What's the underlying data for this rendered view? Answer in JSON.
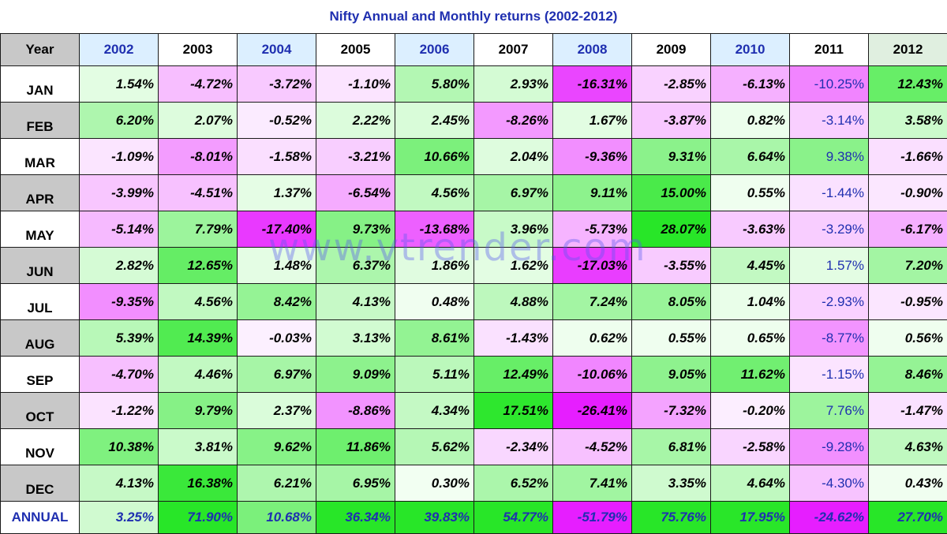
{
  "title": "Nifty Annual and Monthly returns (2002-2012)",
  "year_header": "Year",
  "years": [
    "2002",
    "2003",
    "2004",
    "2005",
    "2006",
    "2007",
    "2008",
    "2009",
    "2010",
    "2011",
    "2012"
  ],
  "watermark": "www.vtrender.com",
  "rows": [
    {
      "month": "JAN",
      "values": [
        "1.54%",
        "-4.72%",
        "-3.72%",
        "-1.10%",
        "5.80%",
        "2.93%",
        "-16.31%",
        "-2.85%",
        "-6.13%",
        "-10.25%",
        "12.43%"
      ]
    },
    {
      "month": "FEB",
      "values": [
        "6.20%",
        "2.07%",
        "-0.52%",
        "2.22%",
        "2.45%",
        "-8.26%",
        "1.67%",
        "-3.87%",
        "0.82%",
        "-3.14%",
        "3.58%"
      ]
    },
    {
      "month": "MAR",
      "values": [
        "-1.09%",
        "-8.01%",
        "-1.58%",
        "-3.21%",
        "10.66%",
        "2.04%",
        "-9.36%",
        "9.31%",
        "6.64%",
        "9.38%",
        "-1.66%"
      ]
    },
    {
      "month": "APR",
      "values": [
        "-3.99%",
        "-4.51%",
        "1.37%",
        "-6.54%",
        "4.56%",
        "6.97%",
        "9.11%",
        "15.00%",
        "0.55%",
        "-1.44%",
        "-0.90%"
      ]
    },
    {
      "month": "MAY",
      "values": [
        "-5.14%",
        "7.79%",
        "-17.40%",
        "9.73%",
        "-13.68%",
        "3.96%",
        "-5.73%",
        "28.07%",
        "-3.63%",
        "-3.29%",
        "-6.17%"
      ]
    },
    {
      "month": "JUN",
      "values": [
        "2.82%",
        "12.65%",
        "1.48%",
        "6.37%",
        "1.86%",
        "1.62%",
        "-17.03%",
        "-3.55%",
        "4.45%",
        "1.57%",
        "7.20%"
      ]
    },
    {
      "month": "JUL",
      "values": [
        "-9.35%",
        "4.56%",
        "8.42%",
        "4.13%",
        "0.48%",
        "4.88%",
        "7.24%",
        "8.05%",
        "1.04%",
        "-2.93%",
        "-0.95%"
      ]
    },
    {
      "month": "AUG",
      "values": [
        "5.39%",
        "14.39%",
        "-0.03%",
        "3.13%",
        "8.61%",
        "-1.43%",
        "0.62%",
        "0.55%",
        "0.65%",
        "-8.77%",
        "0.56%"
      ]
    },
    {
      "month": "SEP",
      "values": [
        "-4.70%",
        "4.46%",
        "6.97%",
        "9.09%",
        "5.11%",
        "12.49%",
        "-10.06%",
        "9.05%",
        "11.62%",
        "-1.15%",
        "8.46%"
      ]
    },
    {
      "month": "OCT",
      "values": [
        "-1.22%",
        "9.79%",
        "2.37%",
        "-8.86%",
        "4.34%",
        "17.51%",
        "-26.41%",
        "-7.32%",
        "-0.20%",
        "7.76%",
        "-1.47%"
      ]
    },
    {
      "month": "NOV",
      "values": [
        "10.38%",
        "3.81%",
        "9.62%",
        "11.86%",
        "5.62%",
        "-2.34%",
        "-4.52%",
        "6.81%",
        "-2.58%",
        "-9.28%",
        "4.63%"
      ]
    },
    {
      "month": "DEC",
      "values": [
        "4.13%",
        "16.38%",
        "6.21%",
        "6.95%",
        "0.30%",
        "6.52%",
        "7.41%",
        "3.35%",
        "4.64%",
        "-4.30%",
        "0.43%"
      ]
    }
  ],
  "annual": {
    "label": "ANNUAL",
    "values": [
      "3.25%",
      "71.90%",
      "10.68%",
      "36.34%",
      "39.83%",
      "54.77%",
      "-51.79%",
      "75.76%",
      "17.95%",
      "-24.62%",
      "27.70%"
    ]
  }
}
